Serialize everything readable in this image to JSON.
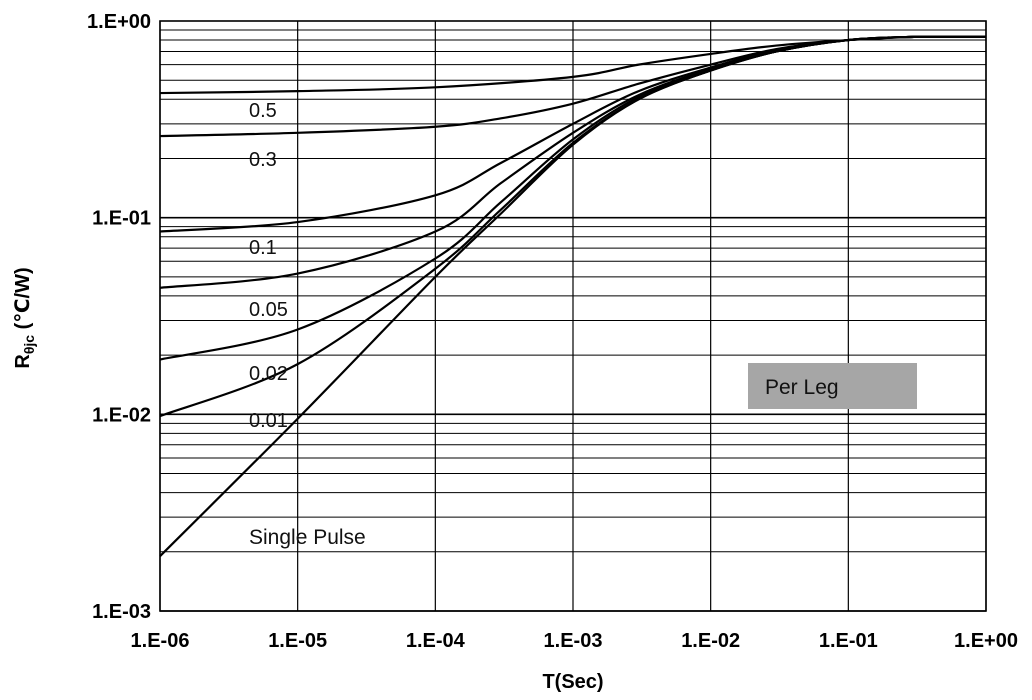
{
  "chart_data": {
    "type": "line",
    "x_scale": "log",
    "y_scale": "log",
    "xlim": [
      1e-06,
      1
    ],
    "ylim": [
      0.001,
      1
    ],
    "xlabel": "T(Sec)",
    "ylabel_main": "R",
    "ylabel_sub": "θjc",
    "ylabel_unit": " (℃/W)",
    "x_ticks": [
      "1.E-06",
      "1.E-05",
      "1.E-04",
      "1.E-03",
      "1.E-02",
      "1.E-01",
      "1.E+00"
    ],
    "y_ticks": [
      "1.E-03",
      "1.E-02",
      "1.E-01",
      "1.E+00"
    ],
    "grid": true,
    "series": [
      {
        "name": "0.5",
        "x": [
          1e-06,
          1e-05,
          0.0001,
          0.001,
          0.003,
          0.01,
          0.03,
          0.1,
          0.3,
          1
        ],
        "y": [
          0.43,
          0.44,
          0.46,
          0.52,
          0.6,
          0.68,
          0.75,
          0.8,
          0.83,
          0.83
        ]
      },
      {
        "name": "0.3",
        "x": [
          1e-06,
          1e-05,
          0.0001,
          0.0003,
          0.001,
          0.003,
          0.01,
          0.03,
          0.1,
          0.3,
          1
        ],
        "y": [
          0.26,
          0.27,
          0.29,
          0.32,
          0.38,
          0.48,
          0.6,
          0.72,
          0.8,
          0.83,
          0.83
        ]
      },
      {
        "name": "0.1",
        "x": [
          1e-06,
          1e-05,
          0.0001,
          0.0003,
          0.001,
          0.003,
          0.01,
          0.03,
          0.1,
          0.3,
          1
        ],
        "y": [
          0.085,
          0.095,
          0.13,
          0.19,
          0.3,
          0.44,
          0.58,
          0.71,
          0.8,
          0.83,
          0.83
        ]
      },
      {
        "name": "0.05",
        "x": [
          1e-06,
          1e-05,
          0.0001,
          0.0003,
          0.001,
          0.003,
          0.01,
          0.03,
          0.1,
          0.3,
          1
        ],
        "y": [
          0.044,
          0.052,
          0.085,
          0.15,
          0.27,
          0.42,
          0.57,
          0.7,
          0.8,
          0.83,
          0.83
        ]
      },
      {
        "name": "0.02",
        "x": [
          1e-06,
          1e-05,
          0.0001,
          0.0003,
          0.001,
          0.003,
          0.01,
          0.03,
          0.1,
          0.3,
          1
        ],
        "y": [
          0.019,
          0.027,
          0.062,
          0.12,
          0.25,
          0.41,
          0.56,
          0.7,
          0.8,
          0.83,
          0.83
        ]
      },
      {
        "name": "0.01",
        "x": [
          1e-06,
          1e-05,
          0.0001,
          0.0003,
          0.001,
          0.003,
          0.01,
          0.03,
          0.1,
          0.3,
          1
        ],
        "y": [
          0.0098,
          0.018,
          0.055,
          0.11,
          0.24,
          0.4,
          0.56,
          0.7,
          0.8,
          0.83,
          0.83
        ]
      },
      {
        "name": "Single Pulse",
        "x": [
          1e-06,
          1e-05,
          0.0001,
          0.0003,
          0.001,
          0.003,
          0.01,
          0.03,
          0.1,
          0.3,
          1
        ],
        "y": [
          0.0019,
          0.0095,
          0.05,
          0.105,
          0.235,
          0.4,
          0.56,
          0.7,
          0.8,
          0.83,
          0.83
        ]
      }
    ],
    "annotations": [
      "0.5",
      "0.3",
      "0.1",
      "0.05",
      "0.02",
      "0.01",
      "Single Pulse"
    ],
    "legend_box": {
      "text": "Per Leg",
      "background": "#a6a6a6"
    },
    "line_color": "#000000",
    "grid_color": "#000000"
  }
}
